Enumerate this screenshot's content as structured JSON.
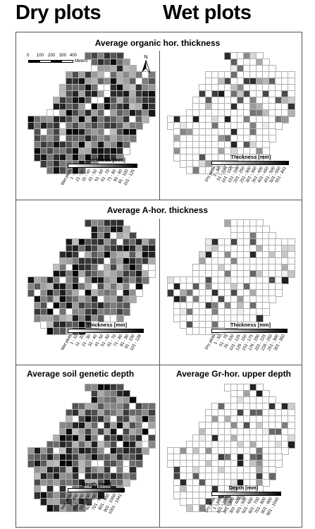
{
  "column_titles": {
    "left": "Dry plots",
    "right": "Wet plots"
  },
  "rows": [
    {
      "title": "Average organic hor. thickness",
      "left_legend": {
        "title": "Thickness [mm]",
        "classes": [
          "Wet plots",
          "1 - 20",
          "21 - 30",
          "31 - 40",
          "41 - 50",
          "51 - 60",
          "61 - 70",
          "71 - 80",
          "81 - 90",
          "91 - 100",
          "101 - 125"
        ]
      },
      "right_legend": {
        "title": "Thickness [mm]",
        "classes": [
          "Dry plots",
          "1 - 50",
          "51 - 100",
          "101 - 150",
          "151 - 200",
          "201 - 250",
          "251 - 300",
          "301 - 350",
          "351 - 400",
          "401 - 450",
          "451 - 500",
          "501 - 550",
          "551 - 841"
        ]
      }
    },
    {
      "title": "Average A-hor. thickness",
      "left_legend": {
        "title": "Thickness [mm]",
        "classes": [
          "Wet plots",
          "1 - 10",
          "11 - 20",
          "21 - 30",
          "31 - 40",
          "41 - 50",
          "51 - 60",
          "61 - 70",
          "71 - 80",
          "81 - 90",
          "91 - 100",
          "101 - 128"
        ]
      },
      "right_legend": {
        "title": "Thickness [mm]",
        "classes": [
          "Dry plots",
          "1 - 50",
          "51 - 75",
          "76 - 100",
          "101 - 125",
          "126 - 150",
          "151 - 175",
          "176 - 200",
          "201 - 225",
          "226 - 250",
          "251 - 300",
          "301 - 350"
        ]
      }
    },
    {
      "left_title": "Average soil genetic depth",
      "right_title": "Average Gr-hor. upper depth",
      "left_legend": {
        "title": "Depth [mm]",
        "classes": [
          "Wet plots",
          "1 - 400",
          "401 - 500",
          "501 - 600",
          "601 - 700",
          "701 - 800",
          "801 - 900",
          "901 - 1000",
          "1001 - 1041"
        ]
      },
      "right_legend": {
        "title": "Depth [mm]",
        "classes": [
          "Dry plots",
          "1 - 100",
          "101 - 200",
          "201 - 300",
          "301 - 400",
          "401 - 500",
          "501 - 600",
          "601 - 700",
          "701 - 800",
          "801 - 900",
          "901 - 1040"
        ]
      }
    }
  ],
  "scale_bar": {
    "ticks": [
      "0",
      "100",
      "200",
      "300",
      "400"
    ],
    "unit": "Meters"
  },
  "north_arrow": {
    "label": "N"
  },
  "colors": {
    "ramp_light": "#f0f0f0",
    "ramp_dark": "#000000",
    "empty_cell": "#ffffff",
    "grid_line": "#b0b0b0",
    "frame": "#555555"
  }
}
